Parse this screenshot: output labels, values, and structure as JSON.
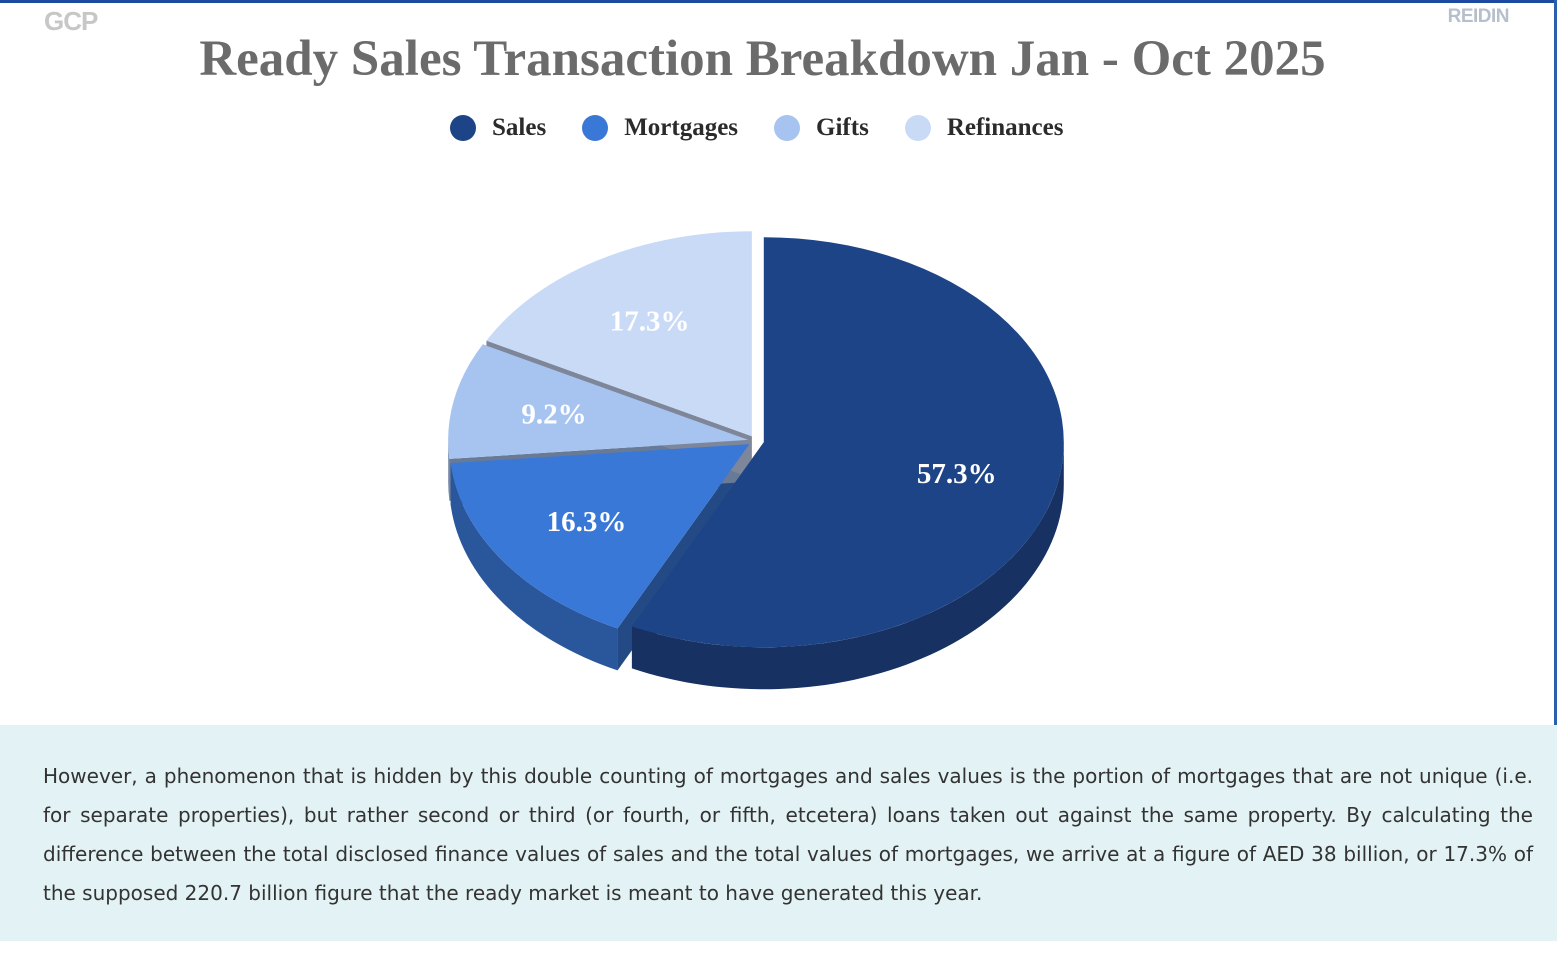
{
  "branding": {
    "left_logo": "GCP",
    "right_logo": "REIDIN"
  },
  "colors": {
    "sales": "#1e4488",
    "mortgages": "#3a78d8",
    "gifts": "#a7c4f1",
    "refinances": "#c9daf7"
  },
  "chart_data": {
    "type": "pie",
    "title": "Ready Sales Transaction Breakdown Jan - Oct 2025",
    "legend_position": "top",
    "style": "3d-exploded",
    "slices": [
      {
        "name": "Sales",
        "value": 57.3,
        "label": "57.3%",
        "color": "#1e4488"
      },
      {
        "name": "Mortgages",
        "value": 16.3,
        "label": "16.3%",
        "color": "#3a78d8"
      },
      {
        "name": "Gifts",
        "value": 9.2,
        "label": "9.2%",
        "color": "#a7c4f1"
      },
      {
        "name": "Refinances",
        "value": 17.3,
        "label": "17.3%",
        "color": "#c9daf7"
      }
    ]
  },
  "body_text": "However, a phenomenon that is hidden by this double counting of mortgages and sales values is the portion of mortgages that are not unique (i.e. for separate properties), but rather second or third (or fourth, or fifth, etcetera) loans taken out against the same property. By calculating the difference between the total disclosed finance values of sales and the total values of mortgages, we arrive at a figure of AED 38 billion, or 17.3% of the supposed 220.7 billion figure that the ready market is meant to have generated this year."
}
